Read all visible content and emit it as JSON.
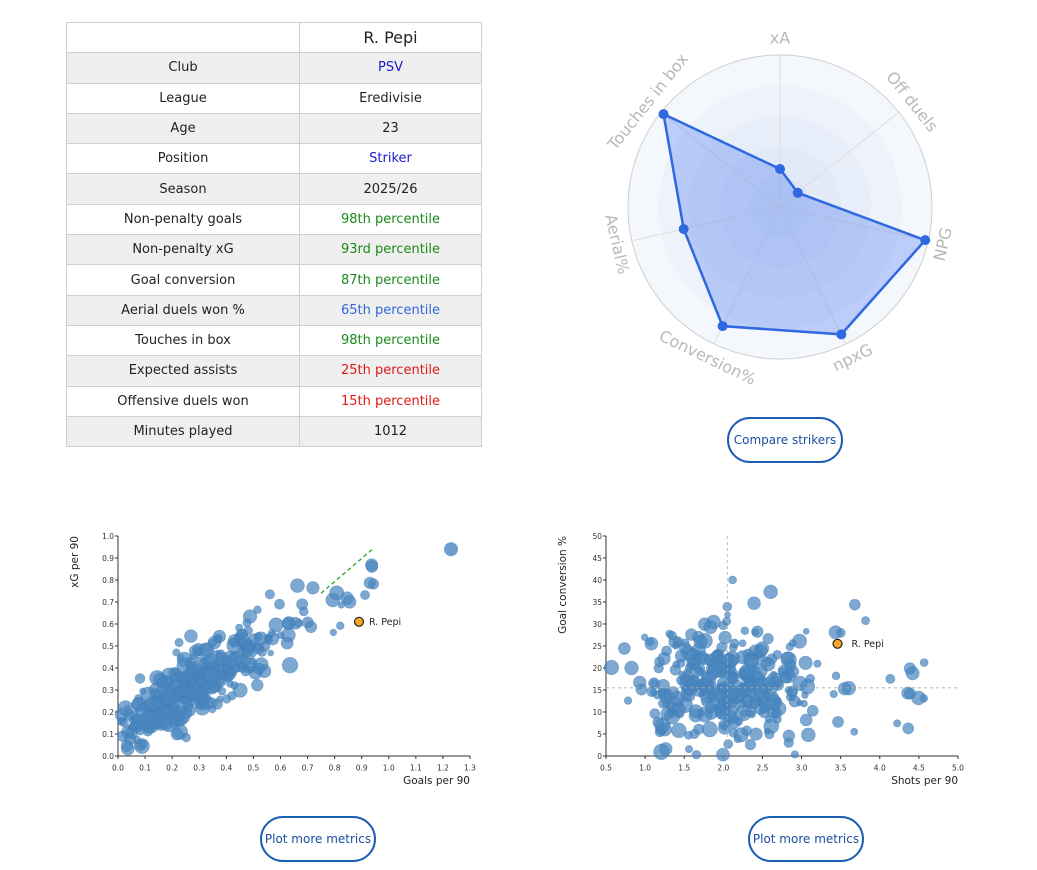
{
  "player": {
    "name": "R. Pepi",
    "rows": [
      {
        "label": "Club",
        "value": "PSV",
        "color": "navy"
      },
      {
        "label": "League",
        "value": "Eredivisie",
        "color": ""
      },
      {
        "label": "Age",
        "value": "23",
        "color": ""
      },
      {
        "label": "Position",
        "value": "Striker",
        "color": "navy"
      },
      {
        "label": "Season",
        "value": "2025/26",
        "color": ""
      },
      {
        "label": "Non-penalty goals",
        "value": "98th percentile",
        "color": "green"
      },
      {
        "label": "Non-penalty xG",
        "value": "93rd percentile",
        "color": "green"
      },
      {
        "label": "Goal conversion",
        "value": "87th percentile",
        "color": "green"
      },
      {
        "label": "Aerial duels won %",
        "value": "65th percentile",
        "color": "blue"
      },
      {
        "label": "Touches in box",
        "value": "98th percentile",
        "color": "green"
      },
      {
        "label": "Expected assists",
        "value": "25th percentile",
        "color": "red"
      },
      {
        "label": "Offensive duels won",
        "value": "15th percentile",
        "color": "red"
      },
      {
        "label": "Minutes played",
        "value": "1012",
        "color": ""
      }
    ]
  },
  "buttons": {
    "compare": "Compare strikers",
    "plot_more_1": "Plot more metrics",
    "plot_more_2": "Plot more metrics"
  },
  "colors": {
    "point": "#4a86bf",
    "highlight": "#f5a623",
    "radar": "#2f68e0",
    "trend": "#2ca02c"
  },
  "chart_data": [
    {
      "type": "radar",
      "title": "",
      "axes": [
        "xA",
        "Off duels",
        "NPG",
        "npxG",
        "Conversion%",
        "Aerial%",
        "Touches in box"
      ],
      "values": [
        25,
        15,
        98,
        93,
        87,
        65,
        98
      ],
      "range": [
        0,
        100
      ],
      "rings": 5
    },
    {
      "type": "scatter",
      "xlabel": "Goals per 90",
      "ylabel": "xG per 90",
      "xlim": [
        0,
        1.3
      ],
      "ylim": [
        0,
        1.0
      ],
      "xticks": [
        "0.0",
        "0.1",
        "0.2",
        "0.3",
        "0.4",
        "0.5",
        "0.6",
        "0.7",
        "0.8",
        "0.9",
        "1.0",
        "1.1",
        "1.2",
        "1.3"
      ],
      "yticks": [
        "0.0",
        "0.1",
        "0.2",
        "0.3",
        "0.4",
        "0.5",
        "0.6",
        "0.7",
        "0.8",
        "0.9",
        "1.0"
      ],
      "trendline": {
        "x": [
          0.75,
          0.94
        ],
        "y": [
          0.74,
          0.94
        ],
        "style": "dashed"
      },
      "highlight": {
        "name": "R. Pepi",
        "x": 0.89,
        "y": 0.61
      },
      "others": {
        "count": 340,
        "x_mean": 0.28,
        "y_mean": 0.33,
        "note": "cloud of league strikers"
      }
    },
    {
      "type": "scatter",
      "xlabel": "Shots per 90",
      "ylabel": "Goal conversion %",
      "xlim": [
        0.5,
        5.0
      ],
      "ylim": [
        0,
        50
      ],
      "xticks": [
        "0.5",
        "1.0",
        "1.5",
        "2.0",
        "2.5",
        "3.0",
        "3.5",
        "4.0",
        "4.5",
        "5.0"
      ],
      "yticks": [
        "0",
        "5",
        "10",
        "15",
        "20",
        "25",
        "30",
        "35",
        "40",
        "45",
        "50"
      ],
      "reference_lines": {
        "x": 2.05,
        "y": 15.5
      },
      "highlight": {
        "name": "R. Pepi",
        "x": 3.46,
        "y": 25.5
      },
      "others": {
        "count": 340,
        "x_mean": 2.1,
        "y_mean": 16,
        "note": "cloud of league strikers"
      }
    }
  ]
}
